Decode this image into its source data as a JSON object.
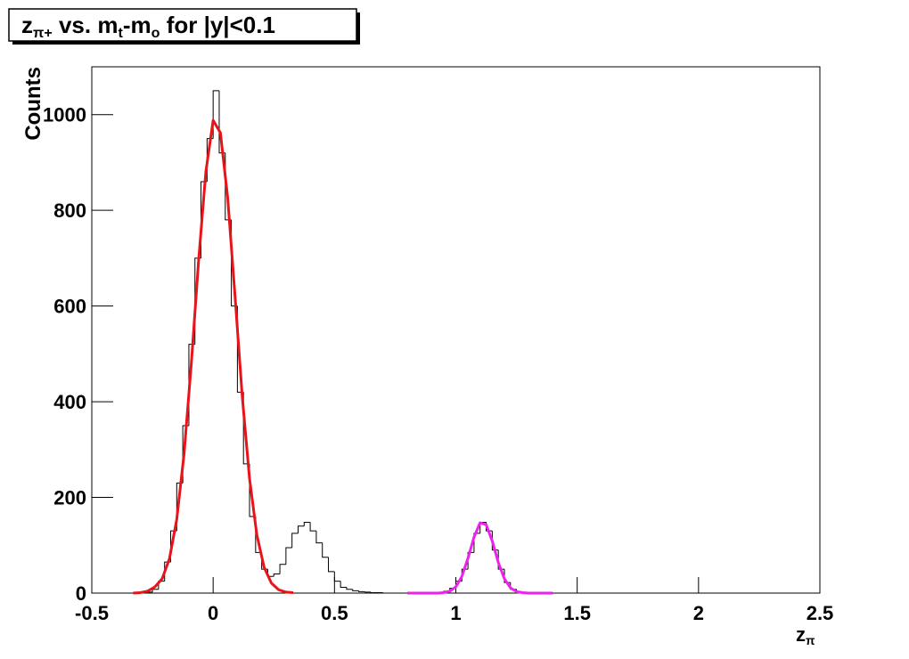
{
  "chart_data": {
    "type": "histogram",
    "title": [
      "z",
      "π+",
      " vs. m",
      "t",
      "-m",
      "o",
      " for |y|<0.1"
    ],
    "xlabel": [
      "z",
      "π"
    ],
    "ylabel": "Counts",
    "xlim": [
      -0.5,
      2.5
    ],
    "ylim": [
      0,
      1100
    ],
    "xticks": [
      -0.5,
      0,
      0.5,
      1,
      1.5,
      2,
      2.5
    ],
    "yticks": [
      0,
      200,
      400,
      600,
      800,
      1000
    ],
    "color": "#000000",
    "bins": [
      -0.3,
      -0.275,
      -0.25,
      -0.225,
      -0.2,
      -0.175,
      -0.15,
      -0.125,
      -0.1,
      -0.075,
      -0.05,
      -0.025,
      0,
      0.025,
      0.05,
      0.075,
      0.1,
      0.125,
      0.15,
      0.175,
      0.2,
      0.225,
      0.25,
      0.275,
      0.3,
      0.325,
      0.35,
      0.375,
      0.4,
      0.425,
      0.45,
      0.475,
      0.5,
      0.525,
      0.55,
      0.575,
      0.6,
      0.625,
      0.65,
      0.675,
      0.7,
      0.725,
      0.75,
      0.775,
      0.8,
      0.825,
      0.85,
      0.875,
      0.9,
      0.925,
      0.95,
      0.975,
      1,
      1.025,
      1.05,
      1.075,
      1.1,
      1.125,
      1.15,
      1.175,
      1.2,
      1.225,
      1.25,
      1.275,
      1.3,
      1.325,
      1.35,
      1.375,
      1.4
    ],
    "values": [
      0,
      2,
      8,
      25,
      65,
      130,
      230,
      350,
      520,
      700,
      860,
      950,
      1050,
      920,
      780,
      600,
      420,
      270,
      160,
      85,
      50,
      35,
      40,
      60,
      95,
      125,
      140,
      148,
      130,
      105,
      75,
      45,
      25,
      12,
      8,
      5,
      3,
      2,
      1,
      1,
      0,
      0,
      0,
      0,
      0,
      0,
      0,
      0,
      1,
      1,
      4,
      10,
      25,
      50,
      85,
      125,
      148,
      130,
      90,
      50,
      22,
      8,
      3,
      1,
      0,
      0,
      0,
      0
    ],
    "fits": [
      {
        "color": "#e8141a",
        "x": [
          -0.33,
          -0.3,
          -0.27,
          -0.24,
          -0.21,
          -0.18,
          -0.15,
          -0.12,
          -0.09,
          -0.06,
          -0.03,
          0,
          0.03,
          0.06,
          0.09,
          0.12,
          0.15,
          0.18,
          0.21,
          0.24,
          0.27,
          0.3,
          0.33
        ],
        "values": [
          0,
          1,
          4,
          13,
          30,
          72,
          154,
          290,
          479,
          694,
          881,
          988,
          962,
          826,
          622,
          411,
          239,
          122,
          54,
          21,
          7,
          2,
          1
        ]
      },
      {
        "color": "#ee22ee",
        "x": [
          0.8,
          0.825,
          0.85,
          0.875,
          0.9,
          0.925,
          0.95,
          0.975,
          1.0,
          1.025,
          1.05,
          1.075,
          1.1,
          1.125,
          1.15,
          1.175,
          1.2,
          1.225,
          1.25,
          1.275,
          1.3,
          1.325,
          1.35,
          1.375,
          1.4
        ],
        "values": [
          0,
          0,
          0,
          0,
          0,
          0,
          1,
          4,
          13,
          35,
          73,
          117,
          147,
          143,
          109,
          64,
          30,
          11,
          3,
          1,
          0,
          0,
          0,
          0,
          0
        ]
      }
    ]
  }
}
